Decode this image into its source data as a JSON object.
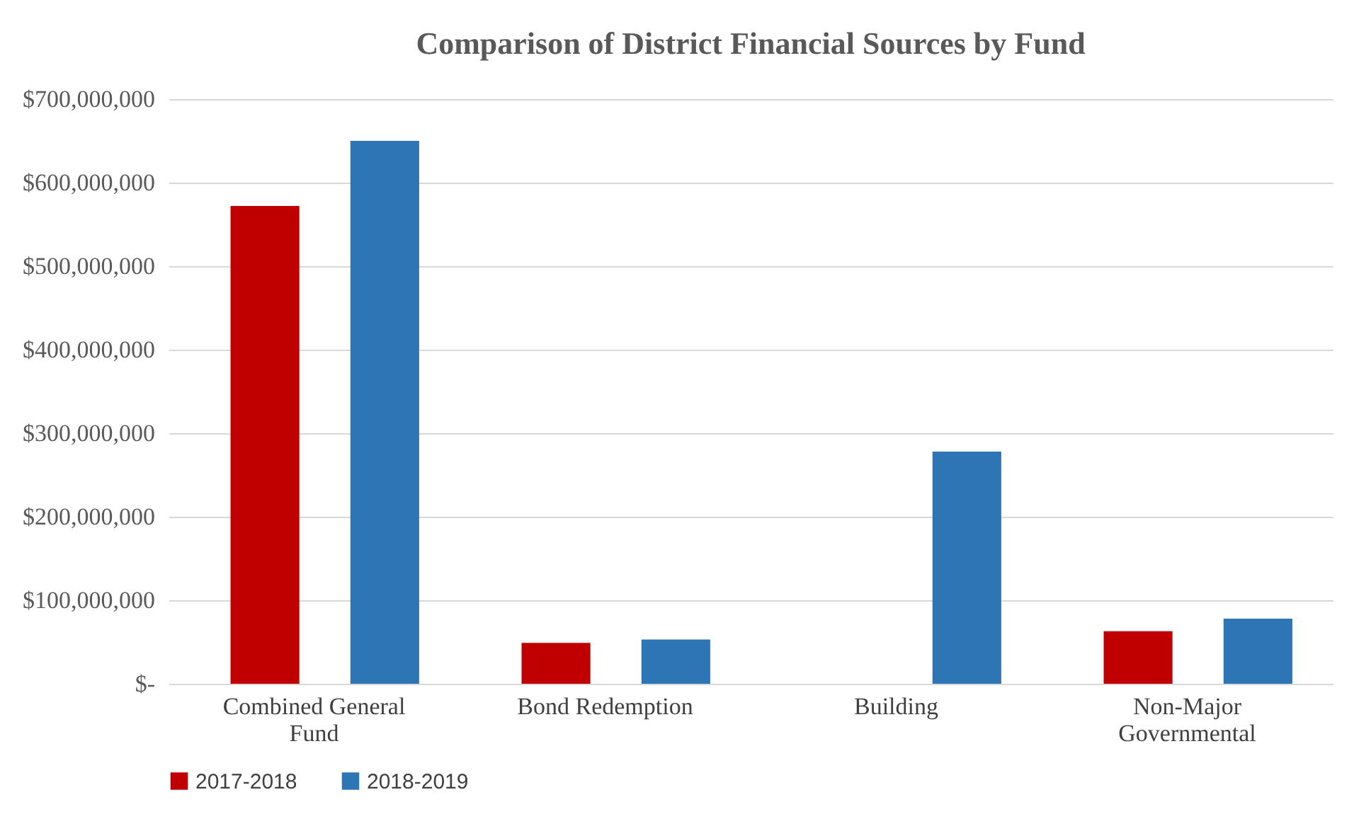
{
  "chart_data": {
    "type": "bar",
    "title": "Comparison of District Financial Sources by Fund",
    "categories": [
      "Combined General Fund",
      "Bond Redemption",
      "Building",
      "Non-Major Governmental"
    ],
    "series": [
      {
        "name": "2017-2018",
        "color": "#c00000",
        "values": [
          572000000,
          49000000,
          0,
          63000000
        ]
      },
      {
        "name": "2018-2019",
        "color": "#2e75b6",
        "values": [
          650000000,
          53000000,
          278000000,
          78000000
        ]
      }
    ],
    "ylim": [
      0,
      700000000
    ],
    "yticks": [
      {
        "value": 0,
        "label": "$-"
      },
      {
        "value": 100000000,
        "label": "$100,000,000"
      },
      {
        "value": 200000000,
        "label": "$200,000,000"
      },
      {
        "value": 300000000,
        "label": "$300,000,000"
      },
      {
        "value": 400000000,
        "label": "$400,000,000"
      },
      {
        "value": 500000000,
        "label": "$500,000,000"
      },
      {
        "value": 600000000,
        "label": "$600,000,000"
      },
      {
        "value": 700000000,
        "label": "$700,000,000"
      }
    ],
    "grid": "y",
    "legend": "bottom"
  }
}
